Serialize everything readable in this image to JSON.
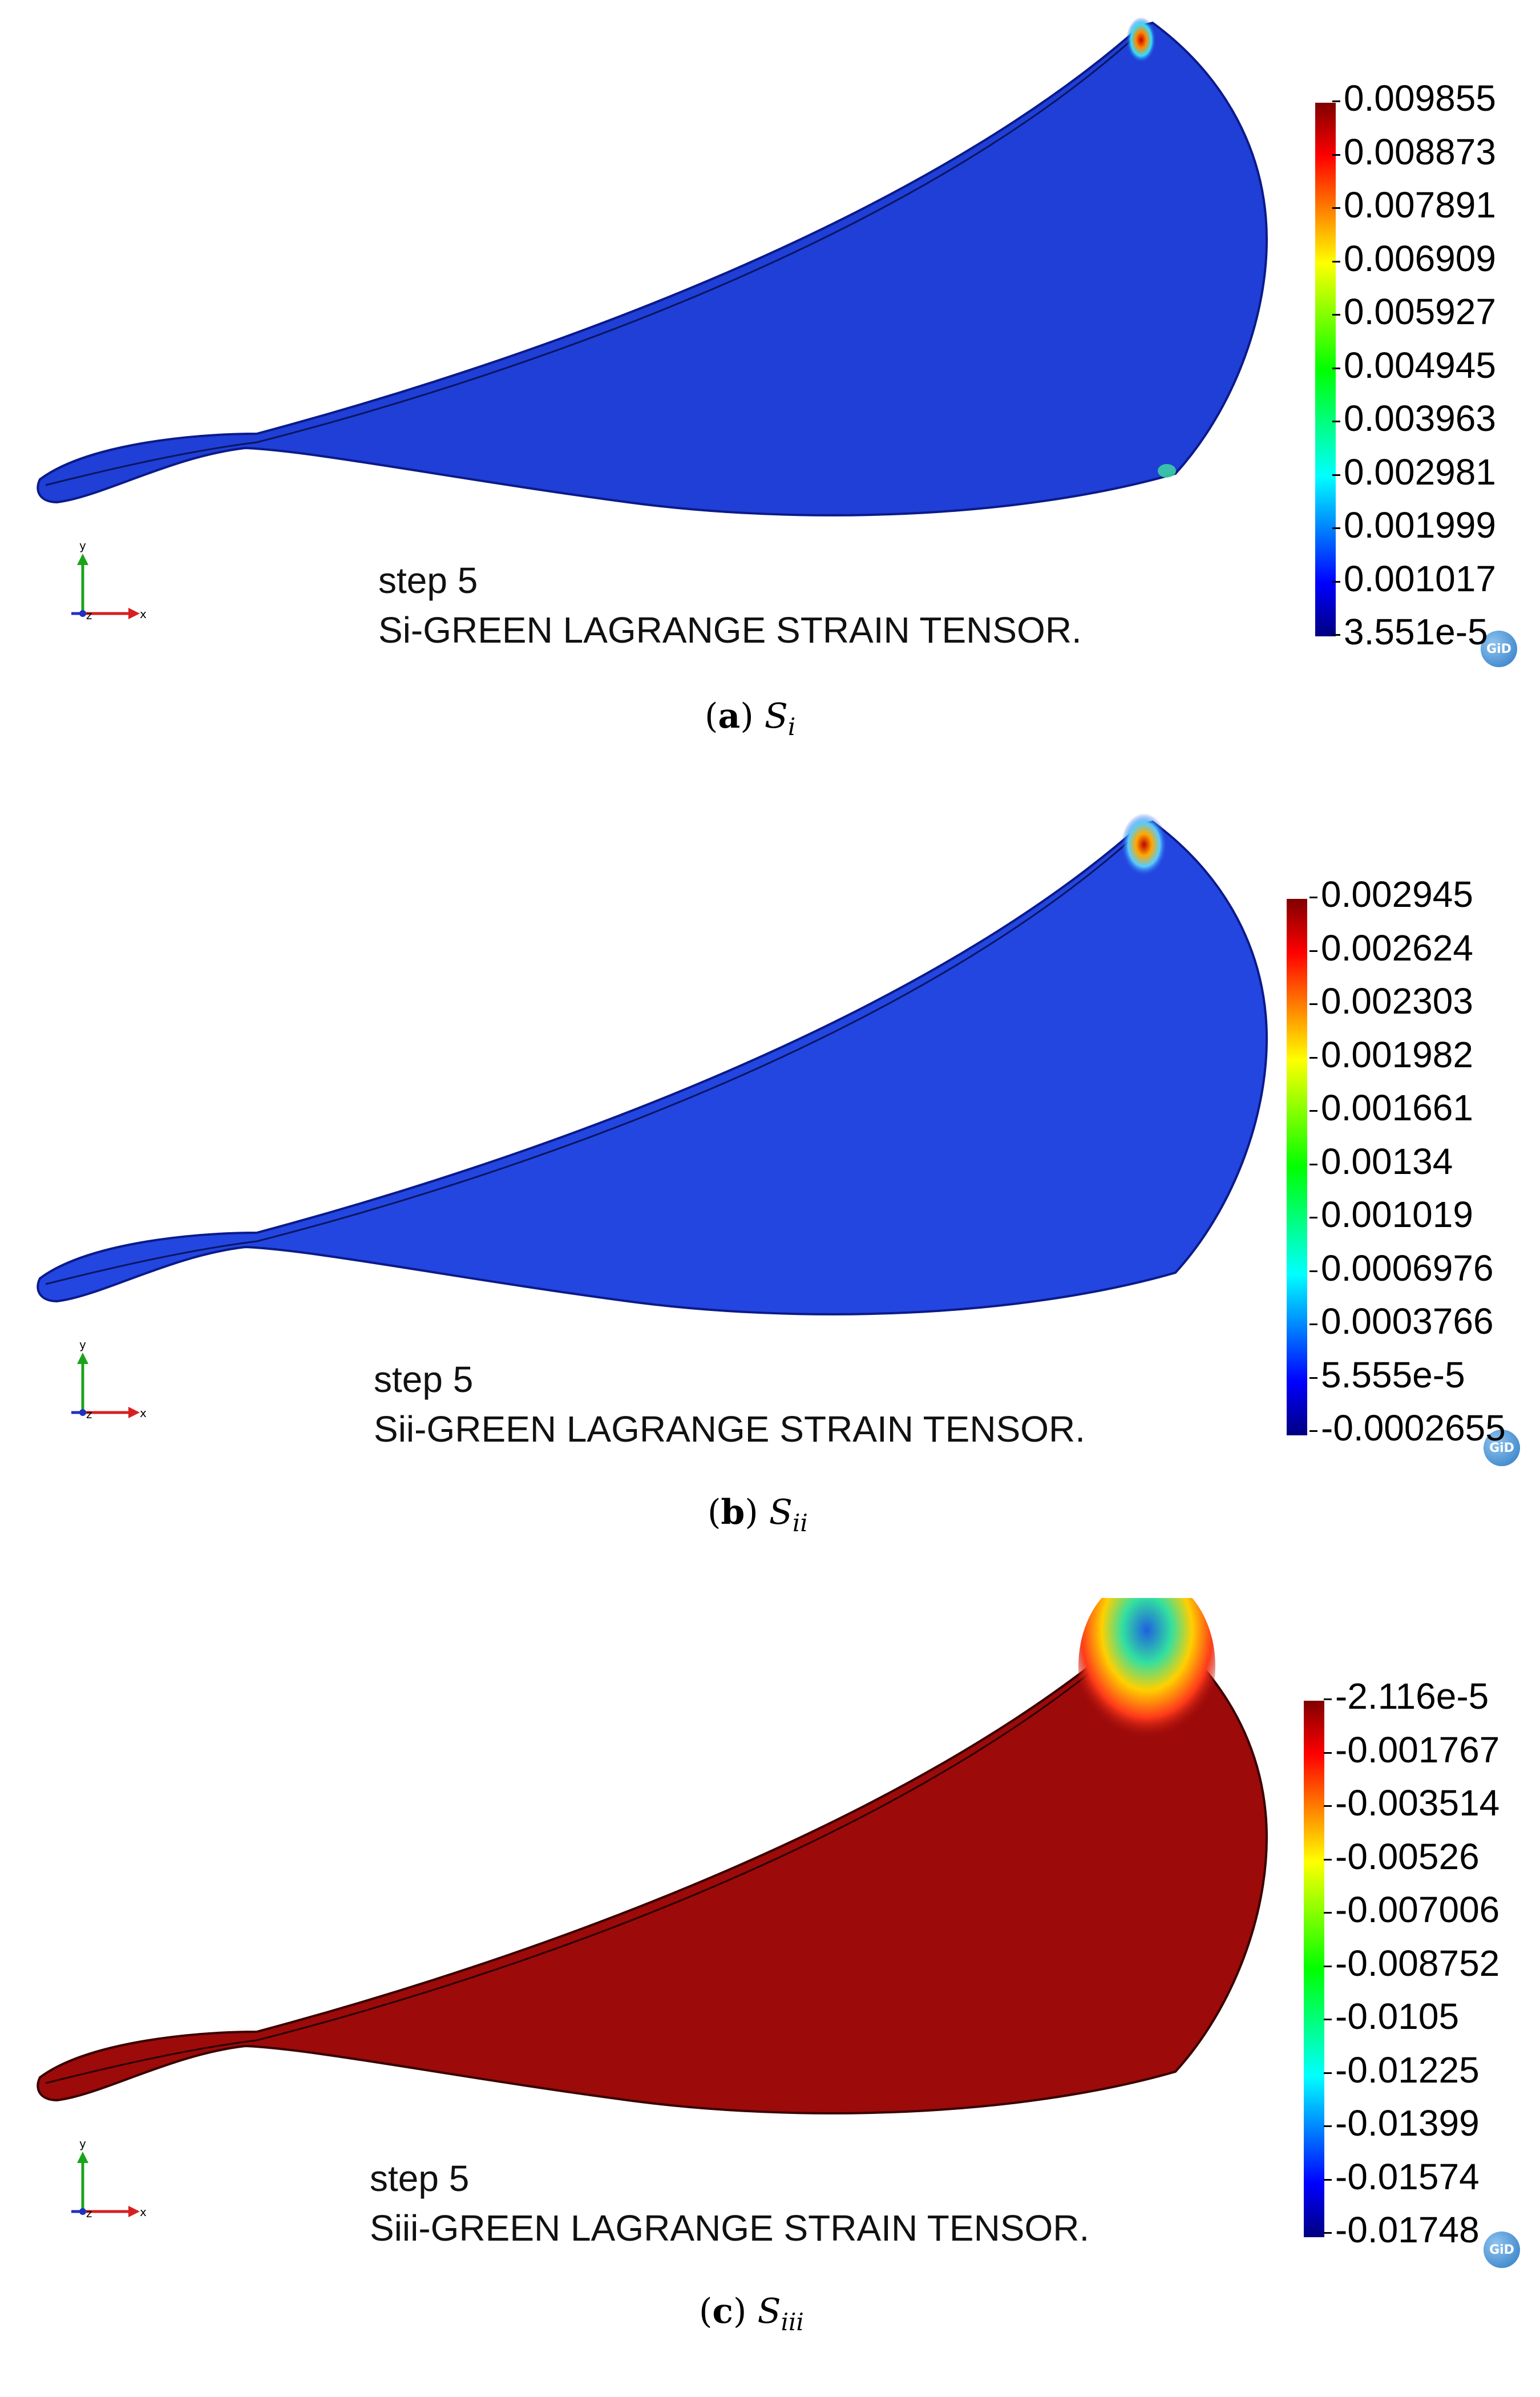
{
  "panels": [
    {
      "step_label": "step 5",
      "result_label": "Si-GREEN LAGRANGE STRAIN TENSOR.",
      "caption_letter": "a",
      "caption_symbol": "S",
      "caption_sub": "i",
      "colorbar_values": [
        "0.009855",
        "0.008873",
        "0.007891",
        "0.006909",
        "0.005927",
        "0.004945",
        "0.003963",
        "0.002981",
        "0.001999",
        "0.001017",
        "3.551e-5"
      ],
      "fill_color": "#1f3fd6",
      "hotspot_color": "#d61f1f",
      "badge": "GiD"
    },
    {
      "step_label": "step 5",
      "result_label": "Sii-GREEN LAGRANGE STRAIN TENSOR.",
      "caption_letter": "b",
      "caption_symbol": "S",
      "caption_sub": "ii",
      "colorbar_values": [
        "0.002945",
        "0.002624",
        "0.002303",
        "0.001982",
        "0.001661",
        "0.00134",
        "0.001019",
        "0.0006976",
        "0.0003766",
        "5.555e-5",
        "-0.0002655"
      ],
      "fill_color": "#2346e0",
      "hotspot_color": "#e02020",
      "badge": "GiD"
    },
    {
      "step_label": "step 5",
      "result_label": "Siii-GREEN LAGRANGE STRAIN TENSOR.",
      "caption_letter": "c",
      "caption_symbol": "S",
      "caption_sub": "iii",
      "colorbar_values": [
        "-2.116e-5",
        "-0.001767",
        "-0.003514",
        "-0.00526",
        "-0.007006",
        "-0.008752",
        "-0.0105",
        "-0.01225",
        "-0.01399",
        "-0.01574",
        "-0.01748"
      ],
      "fill_color": "#9c0a0a",
      "hotspot_color": "#1f8fe0",
      "badge": "GiD"
    }
  ],
  "axis_labels": {
    "x": "x",
    "y": "y",
    "z": "z"
  },
  "colormap": [
    "#000080",
    "#0000ff",
    "#0080ff",
    "#00ffff",
    "#00ff80",
    "#00ff00",
    "#80ff00",
    "#ffff00",
    "#ff8000",
    "#ff0000",
    "#800000"
  ]
}
